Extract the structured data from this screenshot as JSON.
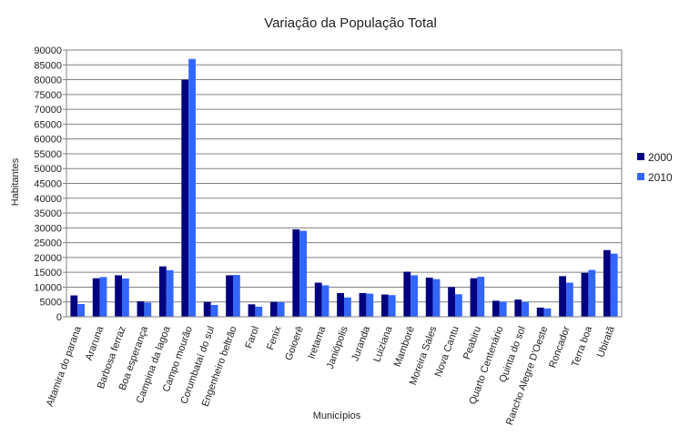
{
  "chart_data": {
    "type": "bar",
    "title": "Variação da População Total",
    "xlabel": "Municípios",
    "ylabel": "Habitantes",
    "ylim": [
      0,
      90000
    ],
    "ytick_step": 5000,
    "grid": "horizontal",
    "legend_position": "right",
    "categories": [
      "Altamira do parana",
      "Araruna",
      "Barbosa ferraz",
      "Boa esperança",
      "Campina da lagoa",
      "Campo mourão",
      "Corumbataí do sul",
      "Engenheiro beltrão",
      "Farol",
      "Fenix",
      "Goioerê",
      "Iretama",
      "Janiópolis",
      "Juranda",
      "Luiziana",
      "Mamborê",
      "Moreira Sales",
      "Nova Cantu",
      "Peabiru",
      "Quarto Centenário",
      "Quinta do sol",
      "Rancho Alegre D'Oeste",
      "Roncador",
      "Terra boa",
      "Ubiratã"
    ],
    "series": [
      {
        "name": "2000",
        "color": "#000080",
        "values": [
          7200,
          13000,
          14000,
          5200,
          17000,
          80000,
          5000,
          14000,
          4200,
          5000,
          29500,
          11500,
          8000,
          8000,
          7500,
          15200,
          13200,
          10000,
          13000,
          5400,
          5800,
          3100,
          13700,
          14800,
          22500
        ]
      },
      {
        "name": "2010",
        "color": "#3366ff",
        "values": [
          4300,
          13400,
          12900,
          4800,
          15700,
          87000,
          4000,
          14100,
          3400,
          4900,
          29000,
          10600,
          6500,
          7800,
          7300,
          14000,
          12700,
          7600,
          13500,
          5100,
          5000,
          2800,
          11500,
          15800,
          21300
        ]
      }
    ]
  }
}
